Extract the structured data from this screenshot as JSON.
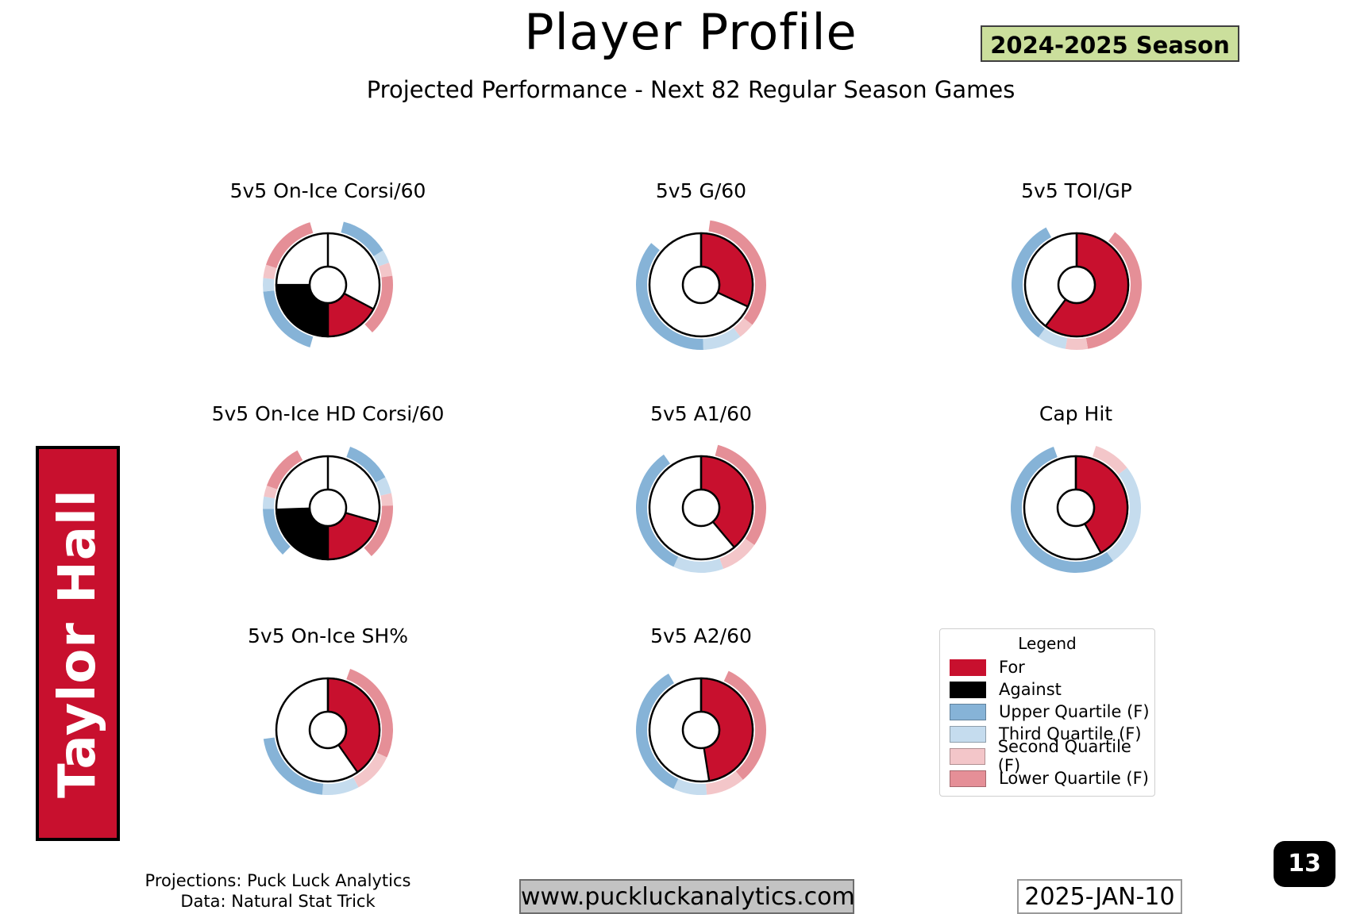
{
  "header": {
    "title": "Player Profile",
    "season_badge": "2024-2025 Season",
    "subtitle": "Projected Performance - Next 82 Regular Season Games"
  },
  "player": {
    "name": "Taylor Hall"
  },
  "colors": {
    "for": "#c8102e",
    "against": "#000000",
    "upper_quartile": "#86b3d7",
    "third_quartile": "#c5dcee",
    "second_quartile": "#f3c6c9",
    "lower_quartile": "#e58f97",
    "badge_bg": "#cbdf9c",
    "player_box_bg": "#c8102e"
  },
  "chart_data": [
    {
      "type": "donut",
      "title": "5v5 On-Ice Corsi/60",
      "direction": "split",
      "for_fraction": 0.34,
      "against_fraction": 0.5,
      "segments": [
        {
          "color": "for",
          "start": 118,
          "end": 180
        },
        {
          "color": "against",
          "start": 180,
          "end": 270
        }
      ],
      "outer_arcs": [
        {
          "color": "upper_quartile",
          "start": 14,
          "end": 58
        },
        {
          "color": "third_quartile",
          "start": 58,
          "end": 70
        },
        {
          "color": "second_quartile",
          "start": 70,
          "end": 82
        },
        {
          "color": "lower_quartile",
          "start": 82,
          "end": 137
        },
        {
          "color": "upper_quartile",
          "start": 196,
          "end": 264
        },
        {
          "color": "third_quartile",
          "start": 264,
          "end": 276
        },
        {
          "color": "second_quartile",
          "start": 276,
          "end": 288
        },
        {
          "color": "lower_quartile",
          "start": 288,
          "end": 344
        }
      ]
    },
    {
      "type": "donut",
      "title": "5v5 G/60",
      "direction": "single",
      "for_fraction": 0.32,
      "segments": [
        {
          "color": "for",
          "start": 0,
          "end": 115
        }
      ],
      "outer_arcs": [
        {
          "color": "lower_quartile",
          "start": 8,
          "end": 128
        },
        {
          "color": "second_quartile",
          "start": 128,
          "end": 143
        },
        {
          "color": "third_quartile",
          "start": 143,
          "end": 178
        },
        {
          "color": "upper_quartile",
          "start": 178,
          "end": 310
        }
      ]
    },
    {
      "type": "donut",
      "title": "5v5 TOI/GP",
      "direction": "single",
      "for_fraction": 0.6,
      "segments": [
        {
          "color": "for",
          "start": 0,
          "end": 217
        }
      ],
      "outer_arcs": [
        {
          "color": "lower_quartile",
          "start": 36,
          "end": 170
        },
        {
          "color": "second_quartile",
          "start": 170,
          "end": 190
        },
        {
          "color": "third_quartile",
          "start": 190,
          "end": 216
        },
        {
          "color": "upper_quartile",
          "start": 216,
          "end": 332
        }
      ]
    },
    {
      "type": "donut",
      "title": "5v5 On-Ice HD Corsi/60",
      "direction": "split",
      "for_fraction": 0.41,
      "against_fraction": 0.49,
      "segments": [
        {
          "color": "for",
          "start": 106,
          "end": 180
        },
        {
          "color": "against",
          "start": 180,
          "end": 268
        }
      ],
      "outer_arcs": [
        {
          "color": "upper_quartile",
          "start": 20,
          "end": 62
        },
        {
          "color": "third_quartile",
          "start": 62,
          "end": 77
        },
        {
          "color": "second_quartile",
          "start": 77,
          "end": 88
        },
        {
          "color": "lower_quartile",
          "start": 88,
          "end": 138
        },
        {
          "color": "upper_quartile",
          "start": 224,
          "end": 269
        },
        {
          "color": "third_quartile",
          "start": 269,
          "end": 280
        },
        {
          "color": "second_quartile",
          "start": 280,
          "end": 290
        },
        {
          "color": "lower_quartile",
          "start": 290,
          "end": 332
        }
      ]
    },
    {
      "type": "donut",
      "title": "5v5 A1/60",
      "direction": "single",
      "for_fraction": 0.39,
      "segments": [
        {
          "color": "for",
          "start": 0,
          "end": 140
        }
      ],
      "outer_arcs": [
        {
          "color": "lower_quartile",
          "start": 15,
          "end": 125
        },
        {
          "color": "second_quartile",
          "start": 125,
          "end": 160
        },
        {
          "color": "third_quartile",
          "start": 160,
          "end": 205
        },
        {
          "color": "upper_quartile",
          "start": 205,
          "end": 325
        }
      ]
    },
    {
      "type": "donut",
      "title": "Cap Hit",
      "direction": "single",
      "for_fraction": 0.42,
      "segments": [
        {
          "color": "for",
          "start": 0,
          "end": 151
        }
      ],
      "outer_arcs": [
        {
          "color": "second_quartile",
          "start": 18,
          "end": 52
        },
        {
          "color": "third_quartile",
          "start": 52,
          "end": 145
        },
        {
          "color": "upper_quartile",
          "start": 145,
          "end": 340
        }
      ]
    },
    {
      "type": "donut",
      "title": "5v5 On-Ice SH%",
      "direction": "single",
      "for_fraction": 0.4,
      "segments": [
        {
          "color": "for",
          "start": 0,
          "end": 145
        }
      ],
      "outer_arcs": [
        {
          "color": "lower_quartile",
          "start": 20,
          "end": 115
        },
        {
          "color": "second_quartile",
          "start": 115,
          "end": 152
        },
        {
          "color": "third_quartile",
          "start": 152,
          "end": 185
        },
        {
          "color": "upper_quartile",
          "start": 185,
          "end": 262
        }
      ]
    },
    {
      "type": "donut",
      "title": "5v5 A2/60",
      "direction": "single",
      "for_fraction": 0.48,
      "segments": [
        {
          "color": "for",
          "start": 0,
          "end": 171
        }
      ],
      "outer_arcs": [
        {
          "color": "lower_quartile",
          "start": 25,
          "end": 140
        },
        {
          "color": "second_quartile",
          "start": 140,
          "end": 175
        },
        {
          "color": "third_quartile",
          "start": 175,
          "end": 205
        },
        {
          "color": "upper_quartile",
          "start": 205,
          "end": 330
        }
      ]
    }
  ],
  "legend": {
    "title": "Legend",
    "items": [
      {
        "label": "For",
        "color": "for"
      },
      {
        "label": "Against",
        "color": "against"
      },
      {
        "label": "Upper Quartile (F)",
        "color": "upper_quartile"
      },
      {
        "label": "Third Quartile (F)",
        "color": "third_quartile"
      },
      {
        "label": "Second Quartile (F)",
        "color": "second_quartile"
      },
      {
        "label": "Lower Quartile (F)",
        "color": "lower_quartile"
      }
    ]
  },
  "footer": {
    "projections": "Projections: Puck Luck Analytics",
    "data_source": "Data: Natural Stat Trick",
    "website": "www.puckluckanalytics.com",
    "date": "2025-JAN-10",
    "page": "13"
  }
}
